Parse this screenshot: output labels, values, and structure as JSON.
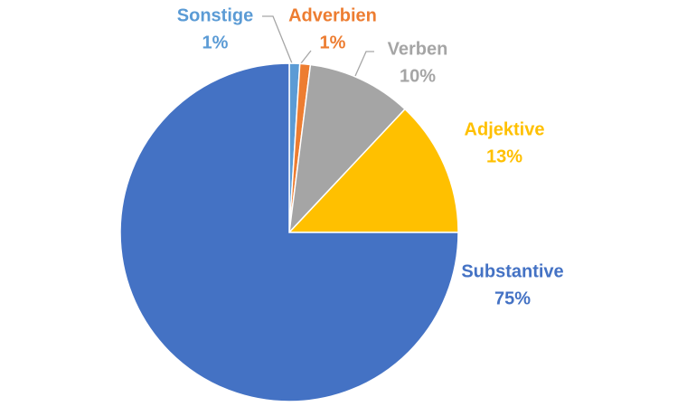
{
  "chart_data": {
    "type": "pie",
    "categories": [
      "Sonstige",
      "Adverbien",
      "Verben",
      "Adjektive",
      "Substantive"
    ],
    "values": [
      1,
      1,
      10,
      13,
      75
    ],
    "value_labels": [
      "1%",
      "1%",
      "10%",
      "13%",
      "75%"
    ],
    "colors": [
      "#5b9bd5",
      "#ed7d31",
      "#a5a5a5",
      "#ffc000",
      "#4472c4"
    ]
  }
}
